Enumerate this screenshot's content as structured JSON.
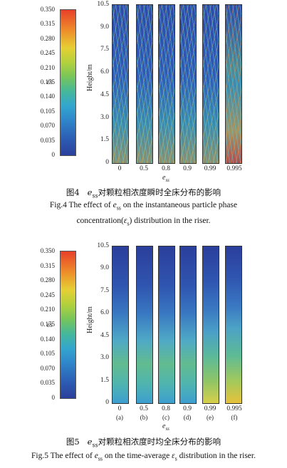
{
  "figures": [
    {
      "id": "fig4",
      "colorbar": {
        "label": "εs",
        "ticks": [
          "0.350",
          "0.315",
          "0.280",
          "0.245",
          "0.210",
          "0.175",
          "0.140",
          "0.105",
          "0.070",
          "0.035",
          "0"
        ]
      },
      "y_axis": {
        "title": "Height/m",
        "ticks": [
          "10.5",
          "9.0",
          "7.5",
          "6.0",
          "4.5",
          "3.0",
          "1.5",
          "0"
        ]
      },
      "x_axis": {
        "title_main": "e",
        "title_sub": "ss",
        "ticks": [
          "0",
          "0.5",
          "0.8",
          "0.9",
          "0.99",
          "0.995"
        ],
        "sub_labels": []
      },
      "caption_cn": {
        "prefix": "图4",
        "var": "e",
        "var_sub": "ss",
        "text": "对颗粒相浓度瞬时全床分布的影响"
      },
      "caption_en": {
        "line1_a": "Fig.4    The effect of ",
        "var": "e",
        "var_sub": "ss",
        "line1_b": " on the instantaneous particle phase",
        "line2_a": "concentration(",
        "sym": "ε",
        "sym_sub": "s",
        "line2_b": ") distribution in the riser."
      }
    },
    {
      "id": "fig5",
      "colorbar": {
        "label": "εs",
        "ticks": [
          "0.350",
          "0.315",
          "0.280",
          "0.245",
          "0.210",
          "0.175",
          "0.140",
          "0.105",
          "0.070",
          "0.035",
          "0"
        ]
      },
      "y_axis": {
        "title": "Height/m",
        "ticks": [
          "10.5",
          "9.0",
          "7.5",
          "6.0",
          "4.5",
          "3.0",
          "1.5",
          "0"
        ]
      },
      "x_axis": {
        "title_main": "e",
        "title_sub": "ss",
        "ticks": [
          "0",
          "0.5",
          "0.8",
          "0.9",
          "0.99",
          "0.995"
        ],
        "sub_labels": [
          "(a)",
          "(b)",
          "(c)",
          "(d)",
          "(e)",
          "(f)"
        ]
      },
      "caption_cn": {
        "prefix": "图5",
        "var": "e",
        "var_sub": "ss",
        "text": "对颗粒相浓度时均全床分布的影响"
      },
      "caption_en": {
        "line1_a": "Fig.5   The effect of ",
        "var": "e",
        "var_sub": "ss",
        "line1_b": " on the time-average ",
        "sym": "ε",
        "sym_sub": "s",
        "line1_c": " distribution in the riser."
      }
    }
  ]
}
